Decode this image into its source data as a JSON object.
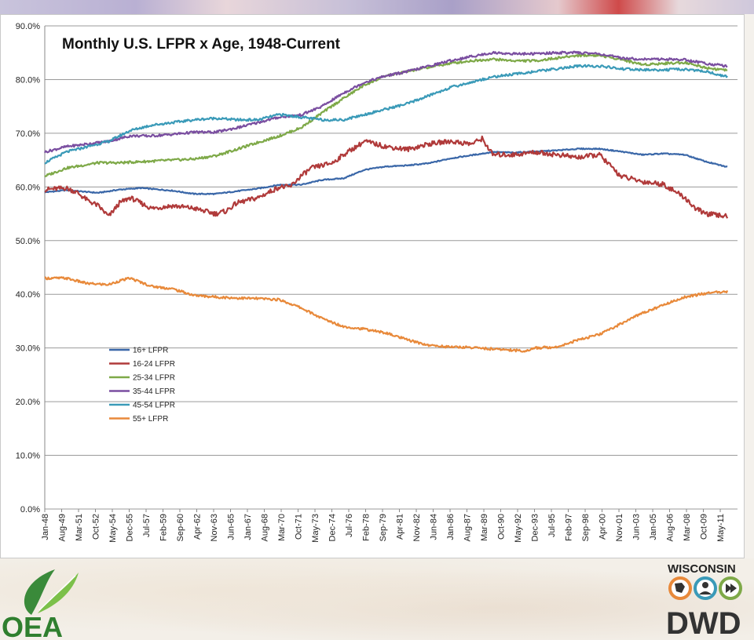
{
  "logos": {
    "left": "OEA",
    "right_top": "WISCONSIN",
    "right_main": "DWD"
  },
  "colors": {
    "grid": "#9a9a9a",
    "background": "#ffffff"
  },
  "chart_data": {
    "type": "line",
    "title": "Monthly U.S. LFPR x Age, 1948-Current",
    "xlabel": "",
    "ylabel": "",
    "ylim": [
      0,
      90
    ],
    "grid": true,
    "legend_placement": "lower-left",
    "x_range": [
      "Jan-48",
      "Dec-12"
    ],
    "x_ticks": [
      "Jan-48",
      "Aug-49",
      "Mar-51",
      "Oct-52",
      "May-54",
      "Dec-55",
      "Jul-57",
      "Feb-59",
      "Sep-60",
      "Apr-62",
      "Nov-63",
      "Jun-65",
      "Jan-67",
      "Aug-68",
      "Mar-70",
      "Oct-71",
      "May-73",
      "Dec-74",
      "Jul-76",
      "Feb-78",
      "Sep-79",
      "Apr-81",
      "Nov-82",
      "Jun-84",
      "Jan-86",
      "Aug-87",
      "Mar-89",
      "Oct-90",
      "May-92",
      "Dec-93",
      "Jul-95",
      "Feb-97",
      "Sep-98",
      "Apr-00",
      "Nov-01",
      "Jun-03",
      "Jan-05",
      "Aug-06",
      "Mar-08",
      "Oct-09",
      "May-11"
    ],
    "y_ticks": [
      "0.0%",
      "10.0%",
      "20.0%",
      "30.0%",
      "40.0%",
      "50.0%",
      "60.0%",
      "70.0%",
      "80.0%",
      "90.0%"
    ],
    "series": [
      {
        "name": "16+ LFPR",
        "color": "#3a67a8",
        "points": [
          [
            1948,
            59
          ],
          [
            1950,
            59.4
          ],
          [
            1953,
            58.9
          ],
          [
            1955,
            59.5
          ],
          [
            1957,
            59.8
          ],
          [
            1960,
            59.3
          ],
          [
            1962,
            58.7
          ],
          [
            1964,
            58.7
          ],
          [
            1966,
            59.2
          ],
          [
            1968,
            59.7
          ],
          [
            1970,
            60.4
          ],
          [
            1972,
            60.4
          ],
          [
            1974,
            61.3
          ],
          [
            1976,
            61.6
          ],
          [
            1978,
            63.2
          ],
          [
            1980,
            63.8
          ],
          [
            1982,
            64.0
          ],
          [
            1984,
            64.4
          ],
          [
            1986,
            65.3
          ],
          [
            1988,
            65.9
          ],
          [
            1990,
            66.5
          ],
          [
            1992,
            66.4
          ],
          [
            1994,
            66.6
          ],
          [
            1996,
            66.8
          ],
          [
            1998,
            67.1
          ],
          [
            2000,
            67.1
          ],
          [
            2002,
            66.6
          ],
          [
            2004,
            66.0
          ],
          [
            2006,
            66.2
          ],
          [
            2008,
            66.0
          ],
          [
            2010,
            64.7
          ],
          [
            2012,
            63.7
          ]
        ]
      },
      {
        "name": "16-24 LFPR",
        "color": "#b03a3a",
        "points": [
          [
            1948,
            59.5
          ],
          [
            1950,
            59.8
          ],
          [
            1951,
            59
          ],
          [
            1952,
            57.5
          ],
          [
            1953,
            56.5
          ],
          [
            1954,
            54.5
          ],
          [
            1955,
            57
          ],
          [
            1956,
            58
          ],
          [
            1958,
            56
          ],
          [
            1960,
            56.5
          ],
          [
            1962,
            56
          ],
          [
            1963,
            55.5
          ],
          [
            1964,
            55
          ],
          [
            1965,
            55.5
          ],
          [
            1966,
            57
          ],
          [
            1968,
            58
          ],
          [
            1969,
            59
          ],
          [
            1970,
            60
          ],
          [
            1971,
            60
          ],
          [
            1972,
            62
          ],
          [
            1973,
            63.5
          ],
          [
            1974,
            64
          ],
          [
            1975,
            64.5
          ],
          [
            1976,
            66
          ],
          [
            1978,
            68.5
          ],
          [
            1980,
            67.5
          ],
          [
            1982,
            67
          ],
          [
            1984,
            68
          ],
          [
            1986,
            68.5
          ],
          [
            1988,
            68
          ],
          [
            1989,
            69
          ],
          [
            1990,
            66
          ],
          [
            1992,
            66
          ],
          [
            1994,
            66.5
          ],
          [
            1996,
            66
          ],
          [
            1998,
            65.5
          ],
          [
            2000,
            66
          ],
          [
            2001,
            64
          ],
          [
            2002,
            62
          ],
          [
            2004,
            61
          ],
          [
            2006,
            60.5
          ],
          [
            2008,
            58
          ],
          [
            2009,
            56
          ],
          [
            2010,
            55
          ],
          [
            2012,
            54.5
          ]
        ]
      },
      {
        "name": "25-34 LFPR",
        "color": "#7ea948",
        "points": [
          [
            1948,
            62
          ],
          [
            1950,
            63.5
          ],
          [
            1953,
            64.5
          ],
          [
            1955,
            64.5
          ],
          [
            1958,
            64.8
          ],
          [
            1960,
            65
          ],
          [
            1962,
            65.2
          ],
          [
            1964,
            65.8
          ],
          [
            1966,
            67
          ],
          [
            1968,
            68.3
          ],
          [
            1970,
            69.5
          ],
          [
            1972,
            71
          ],
          [
            1974,
            73.8
          ],
          [
            1976,
            76.5
          ],
          [
            1978,
            79
          ],
          [
            1980,
            80.7
          ],
          [
            1982,
            81.5
          ],
          [
            1984,
            82.3
          ],
          [
            1986,
            83
          ],
          [
            1988,
            83.5
          ],
          [
            1990,
            83.8
          ],
          [
            1992,
            83.5
          ],
          [
            1994,
            83.5
          ],
          [
            1996,
            84
          ],
          [
            1998,
            84.5
          ],
          [
            2000,
            84.5
          ],
          [
            2002,
            83.8
          ],
          [
            2004,
            82.8
          ],
          [
            2006,
            83
          ],
          [
            2008,
            83.2
          ],
          [
            2010,
            82.2
          ],
          [
            2012,
            81.7
          ]
        ]
      },
      {
        "name": "35-44 LFPR",
        "color": "#7a4ea0",
        "points": [
          [
            1948,
            66.5
          ],
          [
            1950,
            67.5
          ],
          [
            1952,
            68
          ],
          [
            1954,
            68.5
          ],
          [
            1956,
            69.5
          ],
          [
            1958,
            69.5
          ],
          [
            1960,
            69.8
          ],
          [
            1962,
            70.2
          ],
          [
            1964,
            70.2
          ],
          [
            1966,
            71
          ],
          [
            1968,
            72
          ],
          [
            1970,
            73
          ],
          [
            1972,
            73.4
          ],
          [
            1974,
            75
          ],
          [
            1976,
            77.5
          ],
          [
            1978,
            79.5
          ],
          [
            1980,
            80.7
          ],
          [
            1982,
            81.5
          ],
          [
            1984,
            82.5
          ],
          [
            1986,
            83.5
          ],
          [
            1988,
            84.3
          ],
          [
            1990,
            85
          ],
          [
            1992,
            84.8
          ],
          [
            1994,
            84.8
          ],
          [
            1996,
            85
          ],
          [
            1998,
            85
          ],
          [
            2000,
            84.8
          ],
          [
            2002,
            84
          ],
          [
            2004,
            83.8
          ],
          [
            2006,
            83.8
          ],
          [
            2008,
            83.7
          ],
          [
            2010,
            83
          ],
          [
            2012,
            82.5
          ]
        ]
      },
      {
        "name": "45-54 LFPR",
        "color": "#3a9ab8",
        "points": [
          [
            1948,
            64.5
          ],
          [
            1950,
            66.5
          ],
          [
            1952,
            67.5
          ],
          [
            1954,
            68.5
          ],
          [
            1956,
            70.5
          ],
          [
            1958,
            71.5
          ],
          [
            1960,
            72
          ],
          [
            1962,
            72.5
          ],
          [
            1964,
            72.8
          ],
          [
            1966,
            72.5
          ],
          [
            1968,
            72.5
          ],
          [
            1970,
            73.5
          ],
          [
            1972,
            73
          ],
          [
            1974,
            72.5
          ],
          [
            1976,
            72.5
          ],
          [
            1978,
            73.5
          ],
          [
            1980,
            74.5
          ],
          [
            1982,
            75.5
          ],
          [
            1984,
            77
          ],
          [
            1986,
            78.5
          ],
          [
            1988,
            79.5
          ],
          [
            1990,
            80.5
          ],
          [
            1992,
            81
          ],
          [
            1994,
            81.5
          ],
          [
            1996,
            82
          ],
          [
            1998,
            82.5
          ],
          [
            2000,
            82.5
          ],
          [
            2002,
            82
          ],
          [
            2004,
            81.8
          ],
          [
            2006,
            81.8
          ],
          [
            2008,
            81.9
          ],
          [
            2010,
            81.5
          ],
          [
            2012,
            80.5
          ]
        ]
      },
      {
        "name": "55+ LFPR",
        "color": "#e8893a",
        "points": [
          [
            1948,
            43
          ],
          [
            1950,
            43
          ],
          [
            1952,
            42
          ],
          [
            1954,
            41.8
          ],
          [
            1955,
            42.5
          ],
          [
            1956,
            43
          ],
          [
            1958,
            41.5
          ],
          [
            1960,
            41
          ],
          [
            1962,
            39.8
          ],
          [
            1964,
            39.5
          ],
          [
            1966,
            39.3
          ],
          [
            1968,
            39.2
          ],
          [
            1970,
            39
          ],
          [
            1972,
            37.5
          ],
          [
            1974,
            35.5
          ],
          [
            1976,
            34
          ],
          [
            1978,
            33.5
          ],
          [
            1980,
            32.8
          ],
          [
            1982,
            31.5
          ],
          [
            1984,
            30.5
          ],
          [
            1986,
            30.2
          ],
          [
            1988,
            30.1
          ],
          [
            1990,
            29.8
          ],
          [
            1992,
            29.6
          ],
          [
            1993,
            29.4
          ],
          [
            1994,
            30
          ],
          [
            1996,
            30.2
          ],
          [
            1998,
            31.5
          ],
          [
            2000,
            32.5
          ],
          [
            2002,
            34.5
          ],
          [
            2004,
            36.5
          ],
          [
            2006,
            38
          ],
          [
            2008,
            39.5
          ],
          [
            2010,
            40.2
          ],
          [
            2012,
            40.5
          ]
        ]
      }
    ]
  }
}
